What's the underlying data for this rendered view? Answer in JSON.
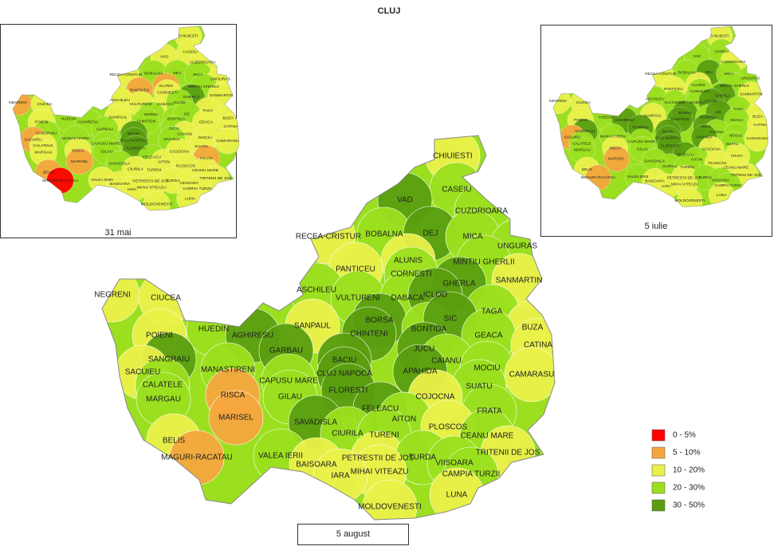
{
  "title": "CLUJ",
  "legend": [
    {
      "label": "0 - 5%",
      "color": "#ff0000"
    },
    {
      "label": "5 - 10%",
      "color": "#f4a63e"
    },
    {
      "label": "10 - 20%",
      "color": "#eaf04a"
    },
    {
      "label": "20 - 30%",
      "color": "#9bdf1f"
    },
    {
      "label": "30 - 50%",
      "color": "#5a9e10"
    }
  ],
  "maps": [
    {
      "label": "31 mai"
    },
    {
      "label": "5 iulie"
    },
    {
      "label": "5 august"
    }
  ],
  "communes": [
    {
      "name": "CHIUIESTI",
      "class": [
        2,
        2,
        2
      ]
    },
    {
      "name": "CASEIU",
      "class": [
        2,
        3,
        3
      ]
    },
    {
      "name": "VAD",
      "class": [
        2,
        3,
        4
      ]
    },
    {
      "name": "CUZDRIOARA",
      "class": [
        2,
        2,
        3
      ]
    },
    {
      "name": "RECEA-CRISTUR",
      "class": [
        2,
        2,
        2
      ]
    },
    {
      "name": "BOBALNA",
      "class": [
        3,
        3,
        3
      ]
    },
    {
      "name": "DEJ",
      "class": [
        3,
        4,
        4
      ]
    },
    {
      "name": "MICA",
      "class": [
        3,
        3,
        3
      ]
    },
    {
      "name": "UNGURAS",
      "class": [
        2,
        3,
        3
      ]
    },
    {
      "name": "ALUNIS",
      "class": [
        1,
        2,
        2
      ]
    },
    {
      "name": "MINTIU GHERLII",
      "class": [
        3,
        3,
        3
      ]
    },
    {
      "name": "PANTICEU",
      "class": [
        1,
        2,
        2
      ]
    },
    {
      "name": "CORNESTI",
      "class": [
        2,
        3,
        3
      ]
    },
    {
      "name": "GHERLA",
      "class": [
        4,
        4,
        4
      ]
    },
    {
      "name": "SANMARTIN",
      "class": [
        2,
        2,
        2
      ]
    },
    {
      "name": "ASCHILEU",
      "class": [
        2,
        3,
        3
      ]
    },
    {
      "name": "VULTURENI",
      "class": [
        2,
        3,
        3
      ]
    },
    {
      "name": "DABACA",
      "class": [
        2,
        3,
        3
      ]
    },
    {
      "name": "ICLOD",
      "class": [
        3,
        4,
        4
      ]
    },
    {
      "name": "TAGA",
      "class": [
        2,
        3,
        3
      ]
    },
    {
      "name": "NEGRENI",
      "class": [
        1,
        2,
        2
      ]
    },
    {
      "name": "CIUCEA",
      "class": [
        2,
        2,
        2
      ]
    },
    {
      "name": "SANPAUL",
      "class": [
        2,
        2,
        2
      ]
    },
    {
      "name": "BORSA",
      "class": [
        3,
        4,
        4
      ]
    },
    {
      "name": "BONTIDA",
      "class": [
        3,
        3,
        3
      ]
    },
    {
      "name": "SIC",
      "class": [
        3,
        4,
        4
      ]
    },
    {
      "name": "BUZA",
      "class": [
        2,
        2,
        2
      ]
    },
    {
      "name": "HUEDIN",
      "class": [
        3,
        3,
        3
      ]
    },
    {
      "name": "AGHIRESU",
      "class": [
        3,
        4,
        4
      ]
    },
    {
      "name": "CHINTENI",
      "class": [
        3,
        4,
        4
      ]
    },
    {
      "name": "GEACA",
      "class": [
        2,
        3,
        3
      ]
    },
    {
      "name": "CATINA",
      "class": [
        2,
        2,
        2
      ]
    },
    {
      "name": "POIENI",
      "class": [
        2,
        2,
        2
      ]
    },
    {
      "name": "GARBAU",
      "class": [
        3,
        4,
        4
      ]
    },
    {
      "name": "SANGRAIU",
      "class": [
        3,
        4,
        4
      ]
    },
    {
      "name": "BACIU",
      "class": [
        4,
        4,
        4
      ]
    },
    {
      "name": "JUCU",
      "class": [
        3,
        4,
        4
      ]
    },
    {
      "name": "CAIANU",
      "class": [
        2,
        3,
        3
      ]
    },
    {
      "name": "MOCIU",
      "class": [
        2,
        3,
        3
      ]
    },
    {
      "name": "SACUIEU",
      "class": [
        1,
        1,
        2
      ]
    },
    {
      "name": "MANASTIRENI",
      "class": [
        3,
        3,
        3
      ]
    },
    {
      "name": "CLUJ NAPOCA",
      "class": [
        4,
        4,
        4
      ]
    },
    {
      "name": "APAHIDA",
      "class": [
        3,
        4,
        4
      ]
    },
    {
      "name": "CAMARASU",
      "class": [
        2,
        2,
        2
      ]
    },
    {
      "name": "CAPUSU MARE",
      "class": [
        3,
        3,
        3
      ]
    },
    {
      "name": "SUATU",
      "class": [
        2,
        3,
        3
      ]
    },
    {
      "name": "CALATELE",
      "class": [
        2,
        3,
        3
      ]
    },
    {
      "name": "FLORESTI",
      "class": [
        4,
        4,
        4
      ]
    },
    {
      "name": "RISCA",
      "class": [
        2,
        2,
        1
      ]
    },
    {
      "name": "GILAU",
      "class": [
        3,
        3,
        3
      ]
    },
    {
      "name": "COJOCNA",
      "class": [
        2,
        2,
        2
      ]
    },
    {
      "name": "MARGAU",
      "class": [
        2,
        3,
        3
      ]
    },
    {
      "name": "MARISEL",
      "class": [
        1,
        1,
        1
      ]
    },
    {
      "name": "FELEACU",
      "class": [
        3,
        4,
        4
      ]
    },
    {
      "name": "FRATA",
      "class": [
        1,
        2,
        3
      ]
    },
    {
      "name": "AITON",
      "class": [
        2,
        3,
        3
      ]
    },
    {
      "name": "SAVADISLA",
      "class": [
        3,
        3,
        4
      ]
    },
    {
      "name": "PLOSCOS",
      "class": [
        2,
        2,
        2
      ]
    },
    {
      "name": "CIURILA",
      "class": [
        2,
        3,
        3
      ]
    },
    {
      "name": "TURENI",
      "class": [
        2,
        3,
        3
      ]
    },
    {
      "name": "CEANU MARE",
      "class": [
        2,
        2,
        3
      ]
    },
    {
      "name": "BELIS",
      "class": [
        1,
        2,
        2
      ]
    },
    {
      "name": "TRITENII DE JOS",
      "class": [
        2,
        2,
        2
      ]
    },
    {
      "name": "VALEA IERII",
      "class": [
        2,
        3,
        3
      ]
    },
    {
      "name": "PETRESTII DE JOS",
      "class": [
        2,
        2,
        2
      ]
    },
    {
      "name": "TURDA",
      "class": [
        2,
        3,
        3
      ]
    },
    {
      "name": "MAGURI-RACATAU",
      "class": [
        0,
        1,
        1
      ]
    },
    {
      "name": "BAISOARA",
      "class": [
        2,
        2,
        2
      ]
    },
    {
      "name": "VIISOARA",
      "class": [
        2,
        3,
        3
      ]
    },
    {
      "name": "MIHAI VITEAZU",
      "class": [
        2,
        2,
        2
      ]
    },
    {
      "name": "CAMPIA TURZII",
      "class": [
        2,
        3,
        3
      ]
    },
    {
      "name": "IARA",
      "class": [
        2,
        2,
        2
      ]
    },
    {
      "name": "LUNA",
      "class": [
        2,
        2,
        2
      ]
    },
    {
      "name": "MOLDOVENESTI",
      "class": [
        2,
        2,
        2
      ]
    }
  ]
}
